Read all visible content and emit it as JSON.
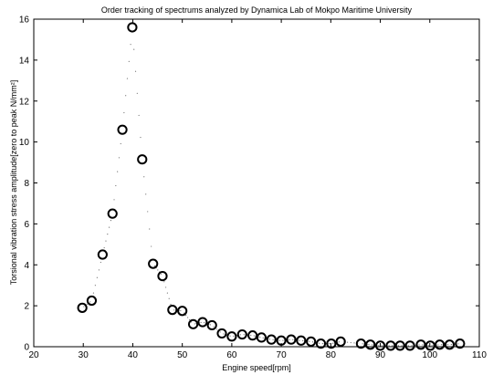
{
  "chart_data": {
    "type": "scatter",
    "title": "Order tracking of spectrums analyzed by Dynamica Lab  of Mokpo Maritime University",
    "xlabel": "Engine speed[rpm]",
    "ylabel": "Torsional vibration stress amplitude[zero to peak N/mm²]",
    "xlim": [
      20,
      110
    ],
    "ylim": [
      0,
      16
    ],
    "xticks": [
      20,
      30,
      40,
      50,
      60,
      70,
      80,
      90,
      100,
      110
    ],
    "yticks": [
      0,
      2,
      4,
      6,
      8,
      10,
      12,
      14,
      16
    ],
    "grid": false,
    "marker": "open-circle",
    "series": [
      {
        "x": [
          29.8,
          31.7,
          33.9,
          35.9,
          37.9,
          39.9,
          41.9,
          44.1,
          46.0,
          48.0,
          50.0,
          52.2,
          54.1,
          56.0,
          58.0,
          60.0,
          62.1,
          64.2,
          66.0,
          68.0,
          70.0,
          72.0,
          74.0,
          76.0,
          78.0,
          80.1,
          82.0,
          86.1,
          88.0,
          90.0,
          92.1,
          94.0,
          96.0,
          98.2,
          100.1,
          102.0,
          104.0,
          106.1
        ],
        "y": [
          1.9,
          2.25,
          4.5,
          6.5,
          10.6,
          15.6,
          9.15,
          4.05,
          3.45,
          1.8,
          1.75,
          1.1,
          1.2,
          1.05,
          0.65,
          0.5,
          0.6,
          0.55,
          0.45,
          0.35,
          0.3,
          0.35,
          0.3,
          0.25,
          0.15,
          0.15,
          0.25,
          0.15,
          0.1,
          0.05,
          0.05,
          0.05,
          0.05,
          0.1,
          0.05,
          0.1,
          0.1,
          0.15
        ]
      }
    ]
  }
}
